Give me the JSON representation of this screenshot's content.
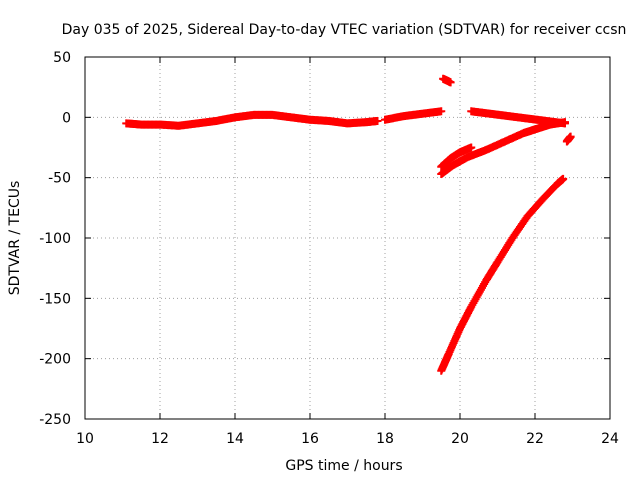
{
  "chart_data": {
    "type": "scatter",
    "title": "Day 035 of 2025, Sidereal Day-to-day VTEC variation (SDTVAR) for receiver ccsn",
    "xlabel": "GPS time / hours",
    "ylabel": "SDTVAR / TECUs",
    "xlim": [
      10,
      24
    ],
    "ylim": [
      -250,
      50
    ],
    "xticks": [
      10,
      12,
      14,
      16,
      18,
      20,
      22,
      24
    ],
    "yticks": [
      -250,
      -200,
      -150,
      -100,
      -50,
      0,
      50
    ],
    "grid": true,
    "marker": "+",
    "color": "#ff0000",
    "series": [
      {
        "x": [
          11.1,
          11.5,
          12.0,
          12.5,
          13.0,
          13.5,
          14.0,
          14.5,
          15.0,
          15.5,
          16.0,
          16.5,
          17.0,
          17.5,
          17.8
        ],
        "y": [
          -5,
          -6,
          -6,
          -7,
          -5,
          -3,
          0,
          2,
          2,
          0,
          -2,
          -3,
          -5,
          -4,
          -3
        ]
      },
      {
        "x": [
          18.0,
          18.5,
          19.0,
          19.5
        ],
        "y": [
          -2,
          1,
          3,
          5
        ]
      },
      {
        "x": [
          19.55,
          19.75
        ],
        "y": [
          32,
          29
        ]
      },
      {
        "x": [
          20.3,
          20.8,
          21.3,
          21.8,
          22.3,
          22.8
        ],
        "y": [
          5,
          3,
          1,
          -1,
          -3,
          -5
        ]
      },
      {
        "x": [
          19.5,
          19.75,
          20.0,
          20.3
        ],
        "y": [
          -41,
          -34,
          -29,
          -25
        ]
      },
      {
        "x": [
          19.5,
          19.8,
          20.2,
          20.7,
          21.2,
          21.7,
          22.0,
          22.4,
          22.8
        ],
        "y": [
          -47,
          -40,
          -33,
          -27,
          -20,
          -13,
          -10,
          -6,
          -4
        ]
      },
      {
        "x": [
          22.85,
          22.95
        ],
        "y": [
          -20,
          -16
        ]
      },
      {
        "x": [
          19.5,
          19.7,
          20.0,
          20.3,
          20.7,
          21.0,
          21.4,
          21.8,
          22.2,
          22.6,
          22.75
        ],
        "y": [
          -210,
          -196,
          -175,
          -157,
          -135,
          -120,
          -100,
          -82,
          -68,
          -55,
          -51
        ]
      }
    ]
  }
}
